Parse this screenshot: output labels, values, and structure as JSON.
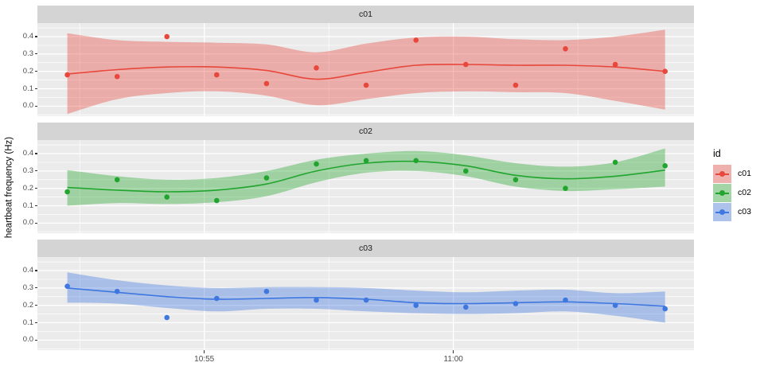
{
  "chart_data": {
    "type": "scatter",
    "title": "",
    "xlabel": "",
    "ylabel": "heartbeat frequency (Hz)",
    "grid": "on",
    "legend": {
      "title": "id",
      "position": "right",
      "entries": [
        {
          "label": "c01",
          "color": "#e8473c"
        },
        {
          "label": "c02",
          "color": "#22a52e"
        },
        {
          "label": "c03",
          "color": "#3e77e0"
        }
      ]
    },
    "x_axis": {
      "note": "x encoded as minutes relative to 11:00; samples approx. 1 per minute",
      "tick_labels": [
        "10:55",
        "11:00"
      ],
      "tick_offsets_min": [
        -5,
        0
      ],
      "minor_offsets_min": [
        -7.5,
        -2.5,
        2.5
      ],
      "domain_offsets_min": [
        -8.35,
        4.83
      ]
    },
    "y_axis": {
      "tick_labels": [
        "0.0",
        "0.1",
        "0.2",
        "0.3",
        "0.4"
      ],
      "ticks": [
        0.0,
        0.1,
        0.2,
        0.3,
        0.4
      ],
      "minor_ticks": [
        -0.05,
        0.05,
        0.15,
        0.25,
        0.35,
        0.45
      ],
      "domain": [
        -0.058,
        0.478
      ]
    },
    "x": [
      -7.75,
      -6.75,
      -5.75,
      -4.75,
      -3.75,
      -2.75,
      -1.75,
      -0.75,
      0.25,
      1.25,
      2.25,
      3.25,
      4.25
    ],
    "facets": [
      {
        "label": "c01",
        "color": "#e8473c",
        "y": [
          0.18,
          0.17,
          0.4,
          0.18,
          0.13,
          0.22,
          0.12,
          0.38,
          0.24,
          0.12,
          0.33,
          0.24,
          0.2
        ],
        "smooth": [
          0.185,
          0.21,
          0.225,
          0.225,
          0.205,
          0.155,
          0.195,
          0.235,
          0.24,
          0.235,
          0.235,
          0.225,
          0.2
        ],
        "band_lo": [
          -0.045,
          0.04,
          0.075,
          0.085,
          0.06,
          0.005,
          0.04,
          0.075,
          0.085,
          0.08,
          0.075,
          0.03,
          -0.02
        ],
        "band_hi": [
          0.42,
          0.38,
          0.37,
          0.365,
          0.355,
          0.31,
          0.36,
          0.395,
          0.4,
          0.385,
          0.38,
          0.4,
          0.44
        ]
      },
      {
        "label": "c02",
        "color": "#22a52e",
        "y": [
          0.18,
          0.25,
          0.15,
          0.13,
          0.26,
          0.34,
          0.36,
          0.36,
          0.3,
          0.25,
          0.2,
          0.35,
          0.33
        ],
        "smooth": [
          0.205,
          0.19,
          0.18,
          0.19,
          0.225,
          0.3,
          0.345,
          0.355,
          0.33,
          0.275,
          0.255,
          0.27,
          0.305
        ],
        "band_lo": [
          0.1,
          0.115,
          0.11,
          0.12,
          0.155,
          0.235,
          0.29,
          0.3,
          0.27,
          0.21,
          0.185,
          0.195,
          0.21
        ],
        "band_hi": [
          0.305,
          0.27,
          0.25,
          0.26,
          0.3,
          0.365,
          0.4,
          0.415,
          0.39,
          0.345,
          0.325,
          0.35,
          0.43
        ]
      },
      {
        "label": "c03",
        "color": "#3e77e0",
        "y": [
          0.31,
          0.28,
          0.13,
          0.24,
          0.28,
          0.23,
          0.23,
          0.2,
          0.19,
          0.21,
          0.23,
          0.2,
          0.18
        ],
        "smooth": [
          0.3,
          0.275,
          0.25,
          0.235,
          0.24,
          0.245,
          0.235,
          0.215,
          0.21,
          0.215,
          0.22,
          0.21,
          0.195
        ],
        "band_lo": [
          0.215,
          0.21,
          0.185,
          0.165,
          0.18,
          0.18,
          0.165,
          0.155,
          0.15,
          0.155,
          0.165,
          0.14,
          0.1
        ],
        "band_hi": [
          0.39,
          0.345,
          0.315,
          0.3,
          0.305,
          0.305,
          0.3,
          0.285,
          0.275,
          0.285,
          0.29,
          0.27,
          0.28
        ]
      }
    ],
    "style": {
      "panel_bg": "#ebebeb",
      "strip_bg": "#d4d4d4",
      "grid_color": "#ffffff",
      "axis_text_color": "#4d4d4d",
      "band_alpha": 0.38
    }
  }
}
